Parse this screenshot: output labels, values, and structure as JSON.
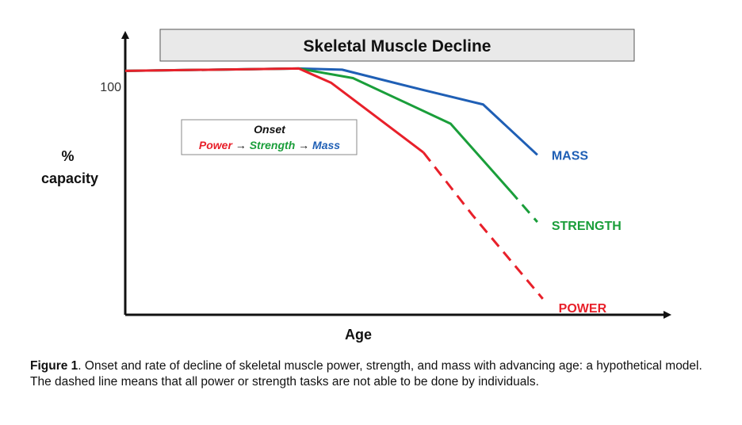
{
  "chart_data": {
    "type": "line",
    "title": "Skeletal Muscle Decline",
    "xlabel": "Age",
    "ylabel": "% capacity",
    "y_tick": "100",
    "xlim": [
      0,
      100
    ],
    "ylim": [
      0,
      115
    ],
    "legend": {
      "title": "Onset",
      "items": [
        {
          "text": "Power",
          "color": "#e8202a"
        },
        {
          "text": "→",
          "color": "#111111"
        },
        {
          "text": "Strength",
          "color": "#1a9e3a"
        },
        {
          "text": "→",
          "color": "#111111"
        },
        {
          "text": "Mass",
          "color": "#1f5fb5"
        }
      ]
    },
    "series": [
      {
        "name": "MASS",
        "color": "#1f5fb5",
        "points": [
          [
            0,
            100
          ],
          [
            32,
            101
          ],
          [
            40,
            100.5
          ],
          [
            55,
            92
          ],
          [
            66,
            86
          ],
          [
            76,
            65
          ]
        ],
        "dashed_from": null
      },
      {
        "name": "STRENGTH",
        "color": "#1a9e3a",
        "points": [
          [
            0,
            100
          ],
          [
            32,
            101
          ],
          [
            42,
            97
          ],
          [
            60,
            78
          ],
          [
            71,
            50
          ],
          [
            76,
            37
          ]
        ],
        "dashed_from": 4
      },
      {
        "name": "POWER",
        "color": "#e8202a",
        "points": [
          [
            0,
            100
          ],
          [
            32,
            101
          ],
          [
            38,
            95
          ],
          [
            55,
            66
          ],
          [
            64,
            40
          ],
          [
            77,
            5
          ]
        ],
        "dashed_from": 3
      }
    ]
  },
  "caption": {
    "label": "Figure 1",
    "text": ". Onset and rate of decline of skeletal muscle power, strength, and mass with advancing age: a hypothetical model. The dashed line means that all power or strength tasks are not able to be done by individuals."
  }
}
